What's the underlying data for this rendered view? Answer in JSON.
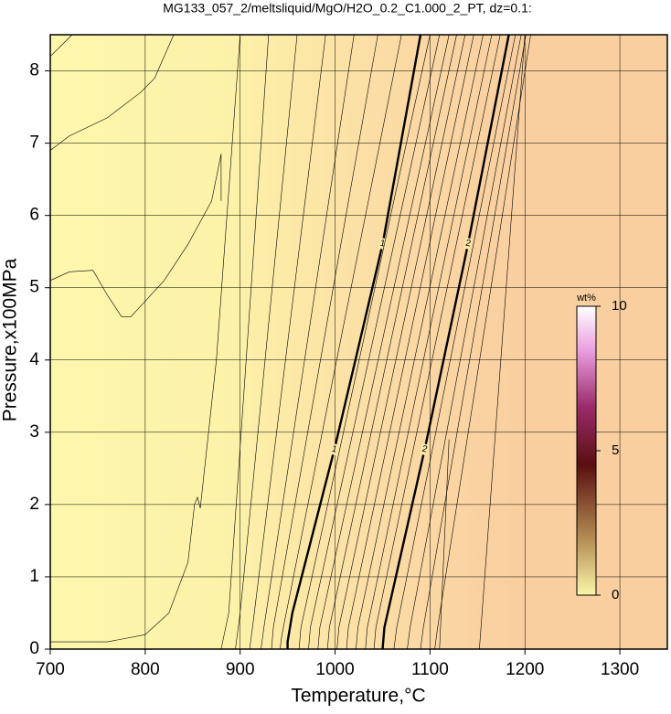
{
  "chart_data": {
    "type": "contour",
    "title": "MG133_057_2/meltsliquid/MgO/H2O_0.2_C1.000_2_PT, dz=0.1:",
    "xlabel": "Temperature,°C",
    "ylabel": "Pressure,x100MPa",
    "xlim": [
      700,
      1350
    ],
    "ylim": [
      0,
      8.5
    ],
    "xticks": [
      700,
      800,
      900,
      1000,
      1100,
      1200,
      1300
    ],
    "yticks": [
      0,
      1,
      2,
      3,
      4,
      5,
      6,
      7,
      8
    ],
    "grid": true,
    "contours": [
      {
        "level": 0.1,
        "x": [
          700,
          723
        ],
        "y": [
          8.2,
          8.5
        ]
      },
      {
        "level": 0.1,
        "x": [
          700,
          720,
          760,
          795,
          810,
          830
        ],
        "y": [
          6.9,
          7.1,
          7.35,
          7.7,
          7.9,
          8.5
        ]
      },
      {
        "level": 0.2,
        "x": [
          700,
          720,
          745,
          760,
          775,
          785,
          820,
          845,
          870,
          880,
          880
        ],
        "y": [
          5.1,
          5.22,
          5.24,
          4.9,
          4.6,
          4.6,
          5.1,
          5.6,
          6.2,
          6.85,
          6.2
        ]
      },
      {
        "level": 0.3,
        "x": [
          700,
          760,
          800,
          825,
          845,
          852,
          855,
          858,
          875,
          900
        ],
        "y": [
          0.1,
          0.1,
          0.2,
          0.5,
          1.2,
          2.0,
          2.1,
          1.95,
          4,
          8.5
        ]
      },
      {
        "level": 0.4,
        "x": [
          880,
          888,
          930
        ],
        "y": [
          0,
          0.5,
          8.5
        ]
      },
      {
        "level": 0.5,
        "x": [
          895,
          900,
          960
        ],
        "y": [
          0,
          0.5,
          8.5
        ]
      },
      {
        "level": 0.6,
        "x": [
          910,
          914,
          990
        ],
        "y": [
          0,
          0.4,
          8.5
        ]
      },
      {
        "level": 0.7,
        "x": [
          922,
          925,
          1020
        ],
        "y": [
          0,
          0.3,
          8.5
        ]
      },
      {
        "level": 0.8,
        "x": [
          933,
          935,
          1045
        ],
        "y": [
          0,
          0.3,
          8.5
        ]
      },
      {
        "level": 0.9,
        "x": [
          942,
          944,
          1070
        ],
        "y": [
          0,
          0.2,
          8.5
        ]
      },
      {
        "level": 1,
        "labeled": true,
        "x": [
          950,
          950,
          955,
          1000,
          1050,
          1090
        ],
        "y": [
          0,
          0.1,
          0.5,
          2.8,
          5.6,
          8.5
        ]
      },
      {
        "level": 1.1,
        "x": [
          962,
          964,
          1100
        ],
        "y": [
          0,
          0.3,
          8.5
        ]
      },
      {
        "level": 1.2,
        "x": [
          972,
          974,
          1110
        ],
        "y": [
          0,
          0.3,
          8.5
        ]
      },
      {
        "level": 1.3,
        "x": [
          982,
          984,
          1120
        ],
        "y": [
          0,
          0.3,
          8.5
        ]
      },
      {
        "level": 1.4,
        "x": [
          992,
          994,
          1128
        ],
        "y": [
          0,
          0.3,
          8.5
        ]
      },
      {
        "level": 1.5,
        "x": [
          1002,
          1004,
          1137
        ],
        "y": [
          0,
          0.3,
          8.5
        ]
      },
      {
        "level": 1.6,
        "x": [
          1012,
          1014,
          1146
        ],
        "y": [
          0,
          0.3,
          8.5
        ]
      },
      {
        "level": 1.7,
        "x": [
          1022,
          1024,
          1156
        ],
        "y": [
          0,
          0.3,
          8.5
        ]
      },
      {
        "level": 1.8,
        "x": [
          1032,
          1034,
          1165
        ],
        "y": [
          0,
          0.3,
          8.5
        ]
      },
      {
        "level": 1.9,
        "x": [
          1041,
          1043,
          1174
        ],
        "y": [
          0,
          0.3,
          8.5
        ]
      },
      {
        "level": 2,
        "labeled": true,
        "x": [
          1050,
          1052,
          1095,
          1140,
          1183
        ],
        "y": [
          0,
          0.3,
          2.8,
          5.6,
          8.5
        ]
      },
      {
        "level": 2.1,
        "x": [
          1062,
          1065,
          1190
        ],
        "y": [
          0,
          0.3,
          8.5
        ]
      },
      {
        "level": 2.2,
        "x": [
          1076,
          1079,
          1196
        ],
        "y": [
          0,
          0.3,
          8.5
        ]
      },
      {
        "level": 2.3,
        "x": [
          1090,
          1093,
          1201
        ],
        "y": [
          0,
          0.3,
          8.5
        ]
      },
      {
        "level": 2.4,
        "x": [
          1105,
          1108,
          1206
        ],
        "y": [
          0,
          0.3,
          8.5
        ]
      },
      {
        "level": 2.5,
        "x": [
          1110,
          1120
        ],
        "y": [
          0,
          2.9
        ]
      },
      {
        "level": 2.6,
        "x": [
          1152,
          1200
        ],
        "y": [
          0,
          8.5
        ]
      }
    ],
    "colorbar": {
      "label": "wt%",
      "lim": [
        0,
        10
      ],
      "ticks": [
        0,
        5,
        10
      ]
    }
  }
}
